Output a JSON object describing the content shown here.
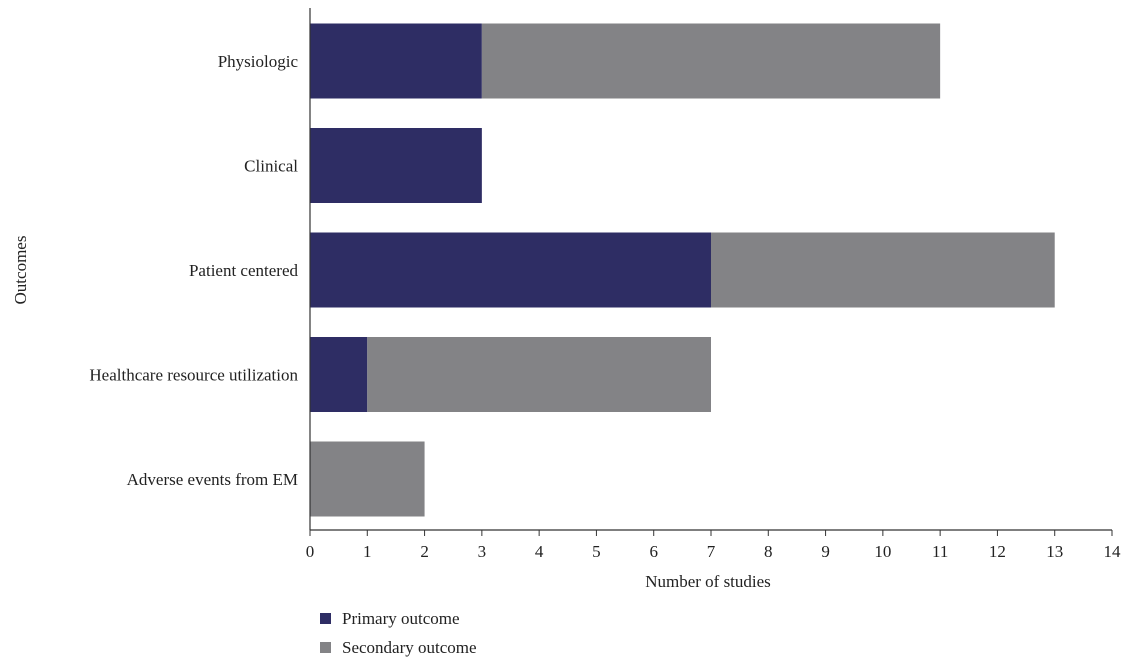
{
  "chart_data": {
    "type": "bar",
    "orientation": "horizontal",
    "stacked": true,
    "categories": [
      "Physiologic",
      "Clinical",
      "Patient centered",
      "Healthcare resource utilization",
      "Adverse events from EM"
    ],
    "series": [
      {
        "name": "Primary outcome",
        "values": [
          3,
          3,
          7,
          1,
          0
        ],
        "color": "#2e2d64"
      },
      {
        "name": "Secondary outcome",
        "values": [
          8,
          0,
          6,
          6,
          2
        ],
        "color": "#838386"
      }
    ],
    "xlabel": "Number of studies",
    "ylabel": "Outcomes",
    "xlim": [
      0,
      14
    ],
    "xticks": [
      0,
      1,
      2,
      3,
      4,
      5,
      6,
      7,
      8,
      9,
      10,
      11,
      12,
      13,
      14
    ],
    "grid": false,
    "legend_position": "bottom-left"
  }
}
